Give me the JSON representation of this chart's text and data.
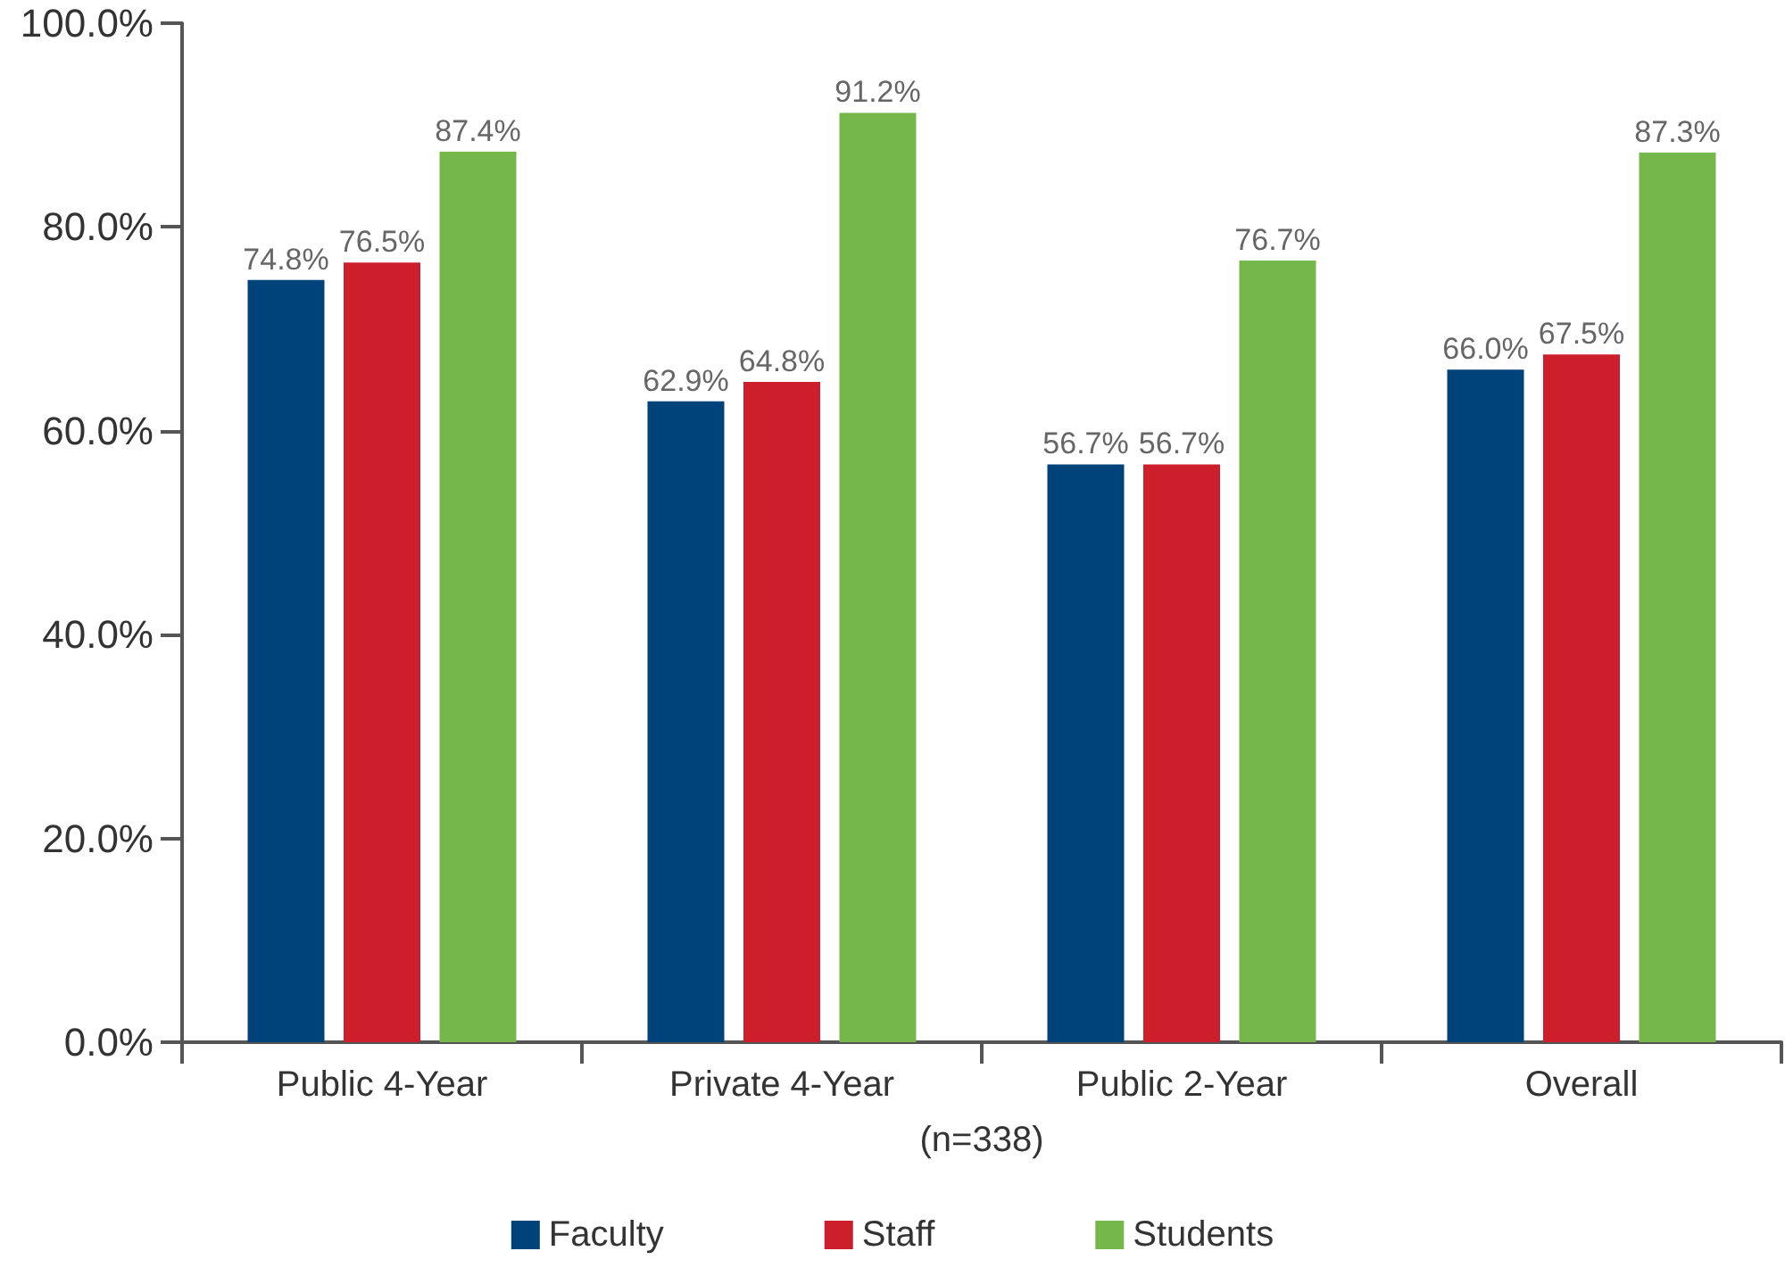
{
  "chart_data": {
    "type": "bar",
    "xlabel": "(n=338)",
    "categories": [
      "Public 4-Year",
      "Private 4-Year",
      "Public 2-Year",
      "Overall"
    ],
    "series": [
      {
        "name": "Faculty",
        "color": "#00427a",
        "values": [
          74.8,
          62.9,
          56.7,
          66.0
        ],
        "value_labels": [
          "74.8%",
          "62.9%",
          "56.7%",
          "66.0%"
        ]
      },
      {
        "name": "Staff",
        "color": "#cc1f2b",
        "values": [
          76.5,
          64.8,
          56.7,
          67.5
        ],
        "value_labels": [
          "76.5%",
          "64.8%",
          "56.7%",
          "67.5%"
        ]
      },
      {
        "name": "Students",
        "color": "#76b74b",
        "values": [
          87.4,
          91.2,
          76.7,
          87.3
        ],
        "value_labels": [
          "87.4%",
          "91.2%",
          "76.7%",
          "87.3%"
        ]
      }
    ],
    "ylim": [
      0,
      100
    ],
    "yticks": [
      {
        "value": 0,
        "label": "0.0%"
      },
      {
        "value": 20,
        "label": "20.0%"
      },
      {
        "value": 40,
        "label": "40.0%"
      },
      {
        "value": 60,
        "label": "60.0%"
      },
      {
        "value": 80,
        "label": "80.0%"
      },
      {
        "value": 100,
        "label": "100.0%"
      }
    ],
    "grid": false,
    "legend": "bottom"
  }
}
